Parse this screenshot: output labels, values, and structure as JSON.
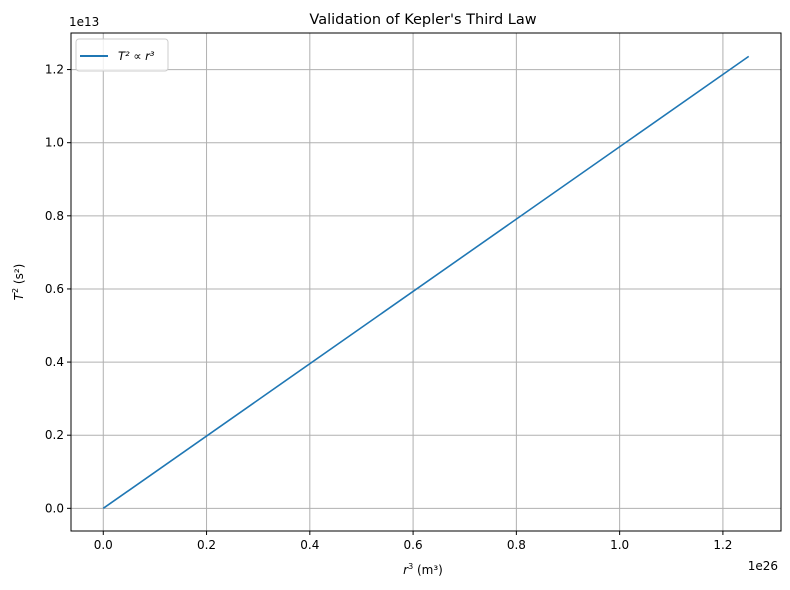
{
  "chart_data": {
    "type": "line",
    "title": "Validation of Kepler's Third Law",
    "xlabel_var": "r",
    "xlabel_exp": "3",
    "xlabel_unit": " (m³)",
    "ylabel_var": "T",
    "ylabel_exp": "2",
    "ylabel_unit": " (s²)",
    "x_offset_label": "1e26",
    "y_offset_label": "1e13",
    "x_scale": 1e+26,
    "y_scale": 10000000000000.0,
    "xlim": [
      -0.0625,
      1.3125
    ],
    "ylim": [
      -0.062,
      1.3
    ],
    "x_ticks": [
      0.0,
      0.2,
      0.4,
      0.6,
      0.8,
      1.0,
      1.2
    ],
    "x_tick_labels": [
      "0.0",
      "0.2",
      "0.4",
      "0.6",
      "0.8",
      "1.0",
      "1.2"
    ],
    "y_ticks": [
      0.0,
      0.2,
      0.4,
      0.6,
      0.8,
      1.0,
      1.2
    ],
    "y_tick_labels": [
      "0.0",
      "0.2",
      "0.4",
      "0.6",
      "0.8",
      "1.0",
      "1.2"
    ],
    "grid": true,
    "legend_position": "upper-left",
    "legend_label": "T² ∝ r³",
    "series": [
      {
        "color": "#1f77b4",
        "x": [
          0.0,
          1.25
        ],
        "y": [
          0.0,
          1.236
        ]
      }
    ]
  }
}
